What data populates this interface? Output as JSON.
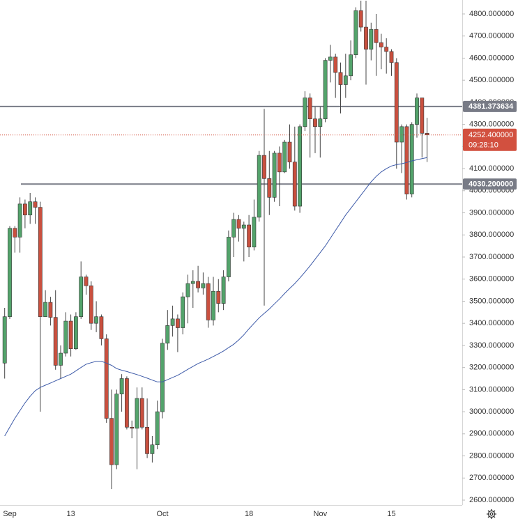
{
  "chart_data": {
    "type": "candlestick",
    "categories": [
      null,
      "Sep",
      null,
      null,
      null,
      null,
      null,
      null,
      null,
      null,
      null,
      null,
      null,
      "13",
      null,
      null,
      null,
      null,
      null,
      null,
      null,
      null,
      null,
      null,
      null,
      null,
      null,
      null,
      null,
      null,
      null,
      "Oct",
      null,
      null,
      null,
      null,
      null,
      null,
      null,
      null,
      null,
      null,
      null,
      null,
      null,
      null,
      null,
      null,
      "18",
      null,
      null,
      null,
      null,
      null,
      null,
      null,
      null,
      null,
      null,
      null,
      null,
      null,
      "Nov",
      null,
      null,
      null,
      null,
      null,
      null,
      null,
      null,
      null,
      null,
      null,
      null,
      null,
      "15",
      null,
      null,
      null,
      null,
      null,
      null,
      null
    ],
    "open": [
      3220,
      3430,
      3830,
      3790,
      3940,
      3890,
      3950,
      3925,
      3430,
      3495,
      3427,
      3210,
      3265,
      3410,
      3285,
      3430,
      3610,
      3570,
      3400,
      3430,
      3330,
      2970,
      2760,
      3080,
      3150,
      2930,
      2925,
      3060,
      2930,
      2810,
      2850,
      3000,
      3310,
      3390,
      3420,
      3380,
      3520,
      3580,
      3590,
      3560,
      3580,
      3415,
      3545,
      3490,
      3610,
      3790,
      3870,
      3830,
      3845,
      3745,
      3880,
      4160,
      4055,
      3970,
      4170,
      4085,
      4220,
      4130,
      3930,
      4290,
      4420,
      4325,
      4290,
      4325,
      4590,
      4605,
      4535,
      4480,
      4520,
      4615,
      4815,
      4740,
      4640,
      4730,
      4670,
      4650,
      4630,
      4580,
      4220,
      4290,
      3985,
      4300,
      4420,
      4260
    ],
    "high": [
      3470,
      3840,
      3840,
      3970,
      3960,
      3990,
      3970,
      3950,
      3550,
      3520,
      3550,
      3300,
      3450,
      3440,
      3450,
      3680,
      3620,
      3590,
      3500,
      3440,
      3350,
      3100,
      3100,
      3170,
      3160,
      2960,
      3110,
      3110,
      3060,
      2890,
      3050,
      3330,
      3460,
      3480,
      3440,
      3540,
      3620,
      3640,
      3660,
      3630,
      3610,
      3610,
      3600,
      3640,
      3820,
      3900,
      3890,
      3860,
      3890,
      3960,
      4180,
      4370,
      4180,
      4180,
      4200,
      4230,
      4300,
      4290,
      4300,
      4450,
      4440,
      4380,
      4380,
      4600,
      4660,
      4620,
      4580,
      4620,
      4680,
      4830,
      4860,
      4860,
      4760,
      4800,
      4710,
      4690,
      4640,
      4600,
      4300,
      4300,
      4310,
      4440,
      4420,
      4330
    ],
    "low": [
      3150,
      3420,
      3720,
      3720,
      3830,
      3850,
      3850,
      3000,
      3430,
      3390,
      3190,
      3150,
      3250,
      3250,
      3280,
      3420,
      3530,
      3370,
      3360,
      3300,
      2950,
      2650,
      2740,
      3000,
      2920,
      2880,
      2740,
      2920,
      2790,
      2770,
      2830,
      2970,
      3280,
      3340,
      3270,
      3350,
      3400,
      3470,
      3540,
      3530,
      3380,
      3390,
      3450,
      3460,
      3590,
      3700,
      3770,
      3680,
      3700,
      3730,
      3860,
      3480,
      3890,
      3950,
      3930,
      4080,
      4100,
      3910,
      3900,
      4270,
      4150,
      4170,
      4150,
      4310,
      4490,
      4420,
      4350,
      4420,
      4500,
      4600,
      4720,
      4480,
      4590,
      4520,
      4550,
      4530,
      4520,
      4100,
      4080,
      3960,
      3970,
      4240,
      4150,
      4130
    ],
    "close": [
      3430,
      3830,
      3790,
      3940,
      3890,
      3950,
      3925,
      3430,
      3495,
      3427,
      3210,
      3265,
      3410,
      3285,
      3430,
      3610,
      3570,
      3400,
      3430,
      3330,
      2970,
      2760,
      3080,
      3150,
      2930,
      2925,
      3060,
      2930,
      2810,
      2850,
      3000,
      3310,
      3390,
      3420,
      3380,
      3520,
      3580,
      3590,
      3560,
      3580,
      3415,
      3545,
      3490,
      3610,
      3790,
      3870,
      3830,
      3845,
      3745,
      3880,
      4160,
      4055,
      3970,
      4170,
      4085,
      4220,
      4130,
      3930,
      4290,
      4420,
      4325,
      4290,
      4325,
      4590,
      4605,
      4535,
      4480,
      4520,
      4615,
      4815,
      4740,
      4640,
      4730,
      4670,
      4650,
      4630,
      4580,
      4220,
      4290,
      3985,
      4300,
      4420,
      4260,
      4252.4
    ],
    "up_color": "#53a36b",
    "down_color": "#c9503f",
    "ma": {
      "color": "#3d5aa8",
      "values": [
        2890,
        2930,
        2970,
        3005,
        3040,
        3070,
        3095,
        3110,
        3120,
        3130,
        3140,
        3150,
        3160,
        3170,
        3185,
        3200,
        3215,
        3222,
        3228,
        3228,
        3220,
        3210,
        3195,
        3188,
        3182,
        3175,
        3168,
        3160,
        3152,
        3143,
        3135,
        3135,
        3145,
        3155,
        3165,
        3178,
        3192,
        3205,
        3218,
        3228,
        3238,
        3250,
        3262,
        3275,
        3290,
        3305,
        3325,
        3348,
        3375,
        3400,
        3425,
        3445,
        3465,
        3488,
        3510,
        3535,
        3558,
        3580,
        3605,
        3632,
        3660,
        3690,
        3720,
        3750,
        3785,
        3820,
        3855,
        3890,
        3920,
        3950,
        3980,
        4010,
        4040,
        4065,
        4085,
        4100,
        4112,
        4118,
        4122,
        4128,
        4135,
        4140,
        4145,
        4150
      ]
    },
    "ylim": [
      2578,
      4863
    ],
    "yticks": [
      {
        "value": 2600,
        "label": "2600.000000"
      },
      {
        "value": 2700,
        "label": "2700.000000"
      },
      {
        "value": 2800,
        "label": "2800.000000"
      },
      {
        "value": 2900,
        "label": "2900.000000"
      },
      {
        "value": 3000,
        "label": "3000.000000"
      },
      {
        "value": 3100,
        "label": "3100.000000"
      },
      {
        "value": 3200,
        "label": "3200.000000"
      },
      {
        "value": 3300,
        "label": "3300.000000"
      },
      {
        "value": 3400,
        "label": "3400.000000"
      },
      {
        "value": 3500,
        "label": "3500.000000"
      },
      {
        "value": 3600,
        "label": "3600.000000"
      },
      {
        "value": 3700,
        "label": "3700.000000"
      },
      {
        "value": 3800,
        "label": "3800.000000"
      },
      {
        "value": 3900,
        "label": "3900.000000"
      },
      {
        "value": 4000,
        "label": "4000.000000"
      },
      {
        "value": 4100,
        "label": "4100.000000"
      },
      {
        "value": 4200,
        "label": "4200.000000"
      },
      {
        "value": 4300,
        "label": "4300.000000"
      },
      {
        "value": 4400,
        "label": "4400.000000"
      },
      {
        "value": 4500,
        "label": "4500.000000"
      },
      {
        "value": 4600,
        "label": "4600.000000"
      },
      {
        "value": 4700,
        "label": "4700.000000"
      },
      {
        "value": 4800,
        "label": "4800.000000"
      }
    ],
    "hlines": [
      {
        "value": 4381.373634,
        "label": "4381.373634",
        "color": "#787b86"
      },
      {
        "value": 4030.2,
        "label": "4030.200000",
        "color": "#787b86"
      }
    ],
    "last_price": {
      "value": 4252.4,
      "label": "4252.400000",
      "countdown": "09:28:10",
      "color": "#d2503f"
    },
    "grid": false
  }
}
